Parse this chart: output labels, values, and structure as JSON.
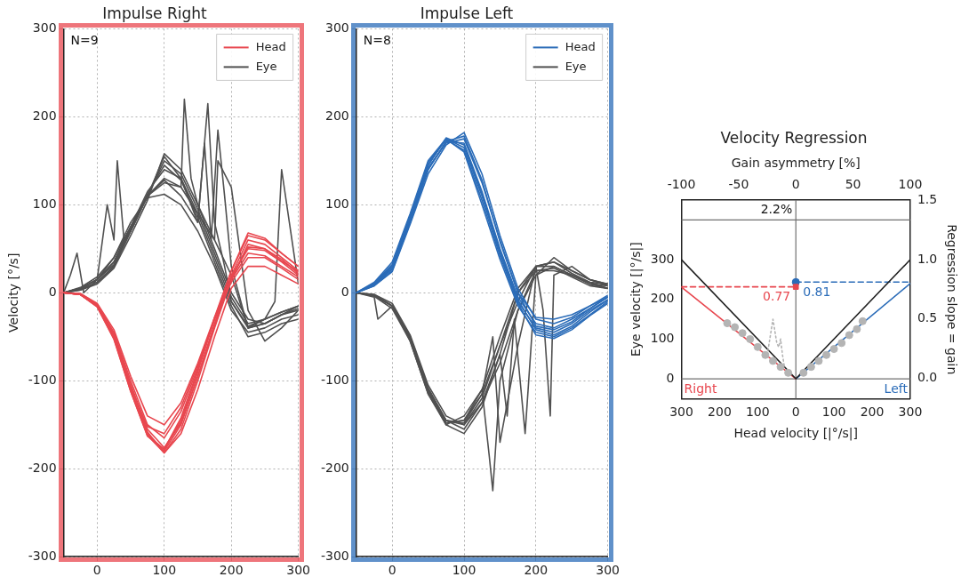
{
  "chart_data": [
    {
      "type": "line",
      "title": "Impulse Right",
      "ylabel": "Velocity [°/s]",
      "annotations": [
        "N=9"
      ],
      "xlim": [
        -50,
        300
      ],
      "xticks": [
        0,
        100,
        200,
        300
      ],
      "ylim": [
        -300,
        300
      ],
      "yticks": [
        -300,
        -200,
        -100,
        0,
        100,
        200,
        300
      ],
      "grid": true,
      "legend": "top right",
      "x": [
        -50,
        -25,
        0,
        25,
        50,
        75,
        100,
        125,
        150,
        175,
        200,
        225,
        250,
        275,
        300
      ],
      "series": [
        {
          "name": "Head",
          "color": "#e8474f",
          "values": [
            0,
            -2,
            -15,
            -50,
            -110,
            -160,
            -180,
            -150,
            -95,
            -35,
            20,
            60,
            55,
            40,
            25
          ]
        },
        {
          "color": "#e8474f",
          "values": [
            0,
            -2,
            -14,
            -48,
            -105,
            -158,
            -182,
            -155,
            -100,
            -40,
            15,
            55,
            50,
            38,
            22
          ]
        },
        {
          "color": "#e8474f",
          "values": [
            0,
            -2,
            -16,
            -52,
            -112,
            -162,
            -178,
            -145,
            -90,
            -30,
            25,
            65,
            60,
            45,
            30
          ]
        },
        {
          "color": "#e8474f",
          "values": [
            0,
            -1,
            -13,
            -45,
            -100,
            -150,
            -165,
            -135,
            -85,
            -30,
            18,
            50,
            48,
            35,
            20
          ]
        },
        {
          "color": "#e8474f",
          "values": [
            0,
            -1,
            -12,
            -42,
            -95,
            -140,
            -150,
            -125,
            -80,
            -28,
            15,
            45,
            42,
            30,
            18
          ]
        },
        {
          "color": "#e8474f",
          "values": [
            0,
            -2,
            -15,
            -50,
            -108,
            -152,
            -160,
            -130,
            -82,
            -30,
            12,
            40,
            40,
            28,
            15
          ]
        },
        {
          "color": "#e8474f",
          "values": [
            0,
            -2,
            -15,
            -50,
            -110,
            -162,
            -182,
            -160,
            -110,
            -50,
            5,
            30,
            30,
            20,
            10
          ]
        },
        {
          "color": "#e8474f",
          "values": [
            0,
            -2,
            -16,
            -53,
            -112,
            -163,
            -178,
            -142,
            -88,
            -28,
            25,
            68,
            62,
            45,
            30
          ]
        },
        {
          "color": "#e8474f",
          "values": [
            0,
            -2,
            -14,
            -47,
            -104,
            -155,
            -176,
            -148,
            -95,
            -38,
            18,
            52,
            50,
            36,
            24
          ]
        },
        {
          "name": "Eye",
          "color": "#505050",
          "values": [
            0,
            5,
            15,
            35,
            75,
            115,
            140,
            130,
            90,
            40,
            -10,
            -40,
            -35,
            -25,
            -18
          ]
        },
        {
          "color": "#505050",
          "values": [
            0,
            4,
            12,
            30,
            70,
            110,
            150,
            135,
            95,
            45,
            -5,
            -35,
            -30,
            -22,
            -15
          ]
        },
        {
          "color": "#505050",
          "values": [
            0,
            3,
            10,
            28,
            65,
            105,
            158,
            140,
            100,
            50,
            0,
            -30,
            -35,
            -25,
            -20
          ]
        },
        {
          "color": "#505050",
          "values": [
            0,
            6,
            18,
            40,
            80,
            108,
            112,
            100,
            70,
            30,
            -20,
            -45,
            -40,
            -30,
            -25
          ]
        },
        {
          "color": "#505050",
          "values": [
            0,
            5,
            15,
            32,
            72,
            112,
            145,
            128,
            85,
            35,
            -15,
            -50,
            -45,
            -35,
            -30
          ]
        },
        {
          "color": "#505050",
          "x": [
            -50,
            -40,
            -30,
            -20,
            0,
            15,
            25,
            30,
            40,
            50,
            75,
            100,
            125,
            130,
            140,
            150,
            175,
            200,
            225,
            250,
            275,
            300
          ],
          "values": [
            0,
            20,
            45,
            0,
            15,
            100,
            60,
            150,
            60,
            70,
            110,
            130,
            120,
            220,
            130,
            100,
            60,
            20,
            -40,
            -35,
            -25,
            -15
          ]
        },
        {
          "color": "#505050",
          "x": [
            -50,
            -25,
            0,
            25,
            50,
            75,
            100,
            125,
            150,
            165,
            175,
            190,
            200,
            225,
            250,
            275,
            300
          ],
          "values": [
            0,
            5,
            15,
            40,
            75,
            110,
            128,
            110,
            80,
            215,
            80,
            30,
            -10,
            -38,
            -30,
            -22,
            -15
          ]
        },
        {
          "color": "#505050",
          "x": [
            -50,
            -25,
            0,
            25,
            50,
            75,
            100,
            125,
            150,
            160,
            170,
            180,
            190,
            200,
            225,
            250,
            265,
            275,
            300
          ],
          "values": [
            0,
            3,
            12,
            30,
            70,
            110,
            155,
            130,
            80,
            170,
            60,
            185,
            110,
            30,
            -40,
            -30,
            -10,
            140,
            10
          ]
        },
        {
          "color": "#505050",
          "x": [
            -50,
            -25,
            0,
            25,
            50,
            75,
            100,
            125,
            150,
            175,
            180,
            200,
            225,
            250,
            275,
            300
          ],
          "values": [
            0,
            5,
            15,
            35,
            75,
            110,
            125,
            120,
            90,
            60,
            150,
            120,
            -20,
            -55,
            -40,
            -20
          ]
        }
      ]
    },
    {
      "type": "line",
      "title": "Impulse Left",
      "annotations": [
        "N=8"
      ],
      "xlim": [
        -50,
        300
      ],
      "xticks": [
        0,
        100,
        200,
        300
      ],
      "ylim": [
        -300,
        300
      ],
      "yticks": [
        -300,
        -200,
        -100,
        0,
        100,
        200,
        300
      ],
      "grid": true,
      "legend": "top right",
      "x": [
        -50,
        -25,
        0,
        25,
        50,
        75,
        100,
        125,
        150,
        175,
        200,
        225,
        250,
        275,
        300
      ],
      "series": [
        {
          "name": "Head",
          "color": "#2b6cb8",
          "values": [
            0,
            10,
            30,
            85,
            145,
            175,
            165,
            110,
            45,
            -10,
            -40,
            -45,
            -35,
            -20,
            -8
          ]
        },
        {
          "color": "#2b6cb8",
          "values": [
            0,
            8,
            25,
            80,
            140,
            172,
            170,
            115,
            50,
            -5,
            -35,
            -40,
            -30,
            -18,
            -5
          ]
        },
        {
          "color": "#2b6cb8",
          "values": [
            0,
            12,
            35,
            90,
            150,
            175,
            160,
            100,
            38,
            -15,
            -45,
            -50,
            -40,
            -25,
            -10
          ]
        },
        {
          "color": "#2b6cb8",
          "values": [
            0,
            9,
            28,
            82,
            142,
            170,
            175,
            125,
            60,
            0,
            -28,
            -30,
            -25,
            -15,
            -5
          ]
        },
        {
          "color": "#2b6cb8",
          "values": [
            0,
            8,
            24,
            78,
            135,
            168,
            182,
            135,
            65,
            5,
            -30,
            -35,
            -28,
            -15,
            -3
          ]
        },
        {
          "color": "#2b6cb8",
          "values": [
            0,
            10,
            30,
            85,
            145,
            176,
            168,
            112,
            48,
            -8,
            -42,
            -48,
            -38,
            -22,
            -8
          ]
        },
        {
          "color": "#2b6cb8",
          "values": [
            0,
            11,
            32,
            88,
            148,
            174,
            162,
            105,
            42,
            -12,
            -48,
            -52,
            -42,
            -26,
            -12
          ]
        },
        {
          "color": "#2b6cb8",
          "values": [
            0,
            9,
            27,
            80,
            140,
            172,
            178,
            128,
            58,
            0,
            -38,
            -42,
            -33,
            -18,
            -5
          ]
        },
        {
          "name": "Eye",
          "color": "#505050",
          "values": [
            0,
            -3,
            -15,
            -50,
            -110,
            -145,
            -150,
            -120,
            -60,
            0,
            25,
            25,
            20,
            10,
            5
          ]
        },
        {
          "color": "#505050",
          "x": [
            -50,
            -25,
            -20,
            0,
            25,
            50,
            75,
            100,
            125,
            150,
            175,
            200,
            225,
            250,
            275,
            300
          ],
          "values": [
            0,
            -5,
            -30,
            -15,
            -50,
            -110,
            -145,
            -155,
            -125,
            -70,
            0,
            30,
            30,
            20,
            10,
            8
          ]
        },
        {
          "color": "#505050",
          "x": [
            -50,
            -25,
            0,
            25,
            50,
            75,
            100,
            125,
            135,
            140,
            150,
            175,
            200,
            225,
            250,
            275,
            300
          ],
          "values": [
            0,
            -2,
            -15,
            -55,
            -115,
            -150,
            -140,
            -110,
            -185,
            -225,
            -100,
            -20,
            20,
            30,
            20,
            12,
            5
          ]
        },
        {
          "color": "#505050",
          "values": [
            0,
            -4,
            -18,
            -55,
            -115,
            -148,
            -145,
            -110,
            -50,
            5,
            30,
            35,
            25,
            15,
            10
          ]
        },
        {
          "color": "#505050",
          "x": [
            -50,
            -25,
            0,
            25,
            50,
            75,
            100,
            125,
            150,
            160,
            170,
            185,
            200,
            225,
            250,
            275,
            300
          ],
          "values": [
            0,
            -3,
            -15,
            -52,
            -112,
            -150,
            -160,
            -130,
            -70,
            -140,
            -30,
            -160,
            20,
            40,
            25,
            15,
            8
          ]
        },
        {
          "color": "#505050",
          "x": [
            -50,
            -25,
            0,
            25,
            50,
            75,
            100,
            125,
            150,
            175,
            200,
            210,
            220,
            225,
            250,
            275,
            300
          ],
          "values": [
            0,
            -3,
            -15,
            -50,
            -108,
            -145,
            -148,
            -115,
            -60,
            -10,
            30,
            -20,
            -140,
            20,
            30,
            15,
            10
          ]
        },
        {
          "color": "#505050",
          "values": [
            0,
            -2,
            -12,
            -48,
            -105,
            -140,
            -150,
            -125,
            -80,
            -20,
            25,
            28,
            18,
            8,
            5
          ]
        },
        {
          "color": "#505050",
          "x": [
            -50,
            -25,
            0,
            25,
            50,
            75,
            100,
            125,
            140,
            150,
            175,
            200,
            225,
            250,
            275,
            300
          ],
          "values": [
            0,
            -3,
            -15,
            -52,
            -112,
            -148,
            -145,
            -115,
            -50,
            -170,
            -60,
            30,
            35,
            22,
            12,
            10
          ]
        }
      ]
    },
    {
      "type": "line",
      "title": "Velocity Regression",
      "xlabel": "Head velocity [|°/s|]",
      "ylabel": "Eye velocity [|°/s|]",
      "y2label": "Regression slope = gain",
      "x2label": "Gain asymmetry [%]",
      "annotations": [
        "2.2%",
        "Right",
        "Left"
      ],
      "xlim": [
        -300,
        300
      ],
      "xticks": [
        {
          "value": -300,
          "label": "300"
        },
        {
          "value": -200,
          "label": "200"
        },
        {
          "value": -100,
          "label": "100"
        },
        0,
        100,
        200,
        300
      ],
      "x2lim": [
        -100,
        100
      ],
      "x2ticks": [
        -100,
        -50,
        0,
        50,
        100
      ],
      "ylim": [
        -50,
        450
      ],
      "yticks": [
        0,
        100,
        200,
        300
      ],
      "y2lim": [
        -0.17,
        1.5
      ],
      "y2ticks": [
        {
          "value": 0,
          "label": "0.0"
        },
        0.5,
        {
          "value": 1,
          "label": "1.0"
        },
        1.5
      ],
      "ref_lines": [
        {
          "axis": "x",
          "value": 0,
          "color": "#707070"
        },
        {
          "axis": "y",
          "value": 0,
          "color": "#707070"
        },
        {
          "axis": "y",
          "value": 400,
          "color": "#707070"
        }
      ],
      "series": [
        {
          "type": "scatter",
          "color": "#b4b4b4",
          "marker": "circle",
          "x": [
            -180,
            -160,
            -140,
            -120,
            -100,
            -80,
            -60,
            -40,
            -20
          ],
          "values": [
            140,
            130,
            115,
            100,
            80,
            60,
            45,
            30,
            15
          ]
        },
        {
          "type": "scatter",
          "color": "#b4b4b4",
          "marker": "circle",
          "x": [
            20,
            40,
            60,
            80,
            100,
            120,
            140,
            160,
            175
          ],
          "values": [
            15,
            30,
            45,
            60,
            75,
            90,
            110,
            125,
            145
          ]
        },
        {
          "color": "#b4b4b4",
          "line_style": "dotted",
          "x": [
            -75,
            -60,
            -50,
            -45,
            -40,
            -35,
            -30
          ],
          "values": [
            60,
            150,
            90,
            80,
            100,
            60,
            30
          ]
        },
        {
          "color": "#202020",
          "x": [
            -300,
            0,
            300
          ],
          "values": [
            300,
            0,
            300
          ]
        },
        {
          "color": "#e8474f",
          "x": [
            -300,
            0
          ],
          "values": [
            231,
            0
          ]
        },
        {
          "color": "#2b6cb8",
          "x": [
            0,
            300
          ],
          "values": [
            0,
            240
          ]
        },
        {
          "color": "#e8474f",
          "axis": "y2",
          "line_style": "dashed",
          "x": [
            -300,
            0
          ],
          "values": [
            0.77,
            0.77
          ]
        },
        {
          "color": "#2b6cb8",
          "axis": "y2",
          "line_style": "dashed",
          "x": [
            0,
            300
          ],
          "values": [
            0.81,
            0.81
          ]
        },
        {
          "type": "scatter",
          "color": "#e8474f",
          "axis": "y2",
          "marker": "square",
          "x": [
            0
          ],
          "values": [
            0.77
          ],
          "value_labels": [
            "0.77"
          ]
        },
        {
          "type": "scatter",
          "color": "#2b6cb8",
          "axis": "y2",
          "marker": "circle",
          "x": [
            0
          ],
          "values": [
            0.81
          ],
          "value_labels": [
            "0.81"
          ]
        }
      ]
    }
  ]
}
